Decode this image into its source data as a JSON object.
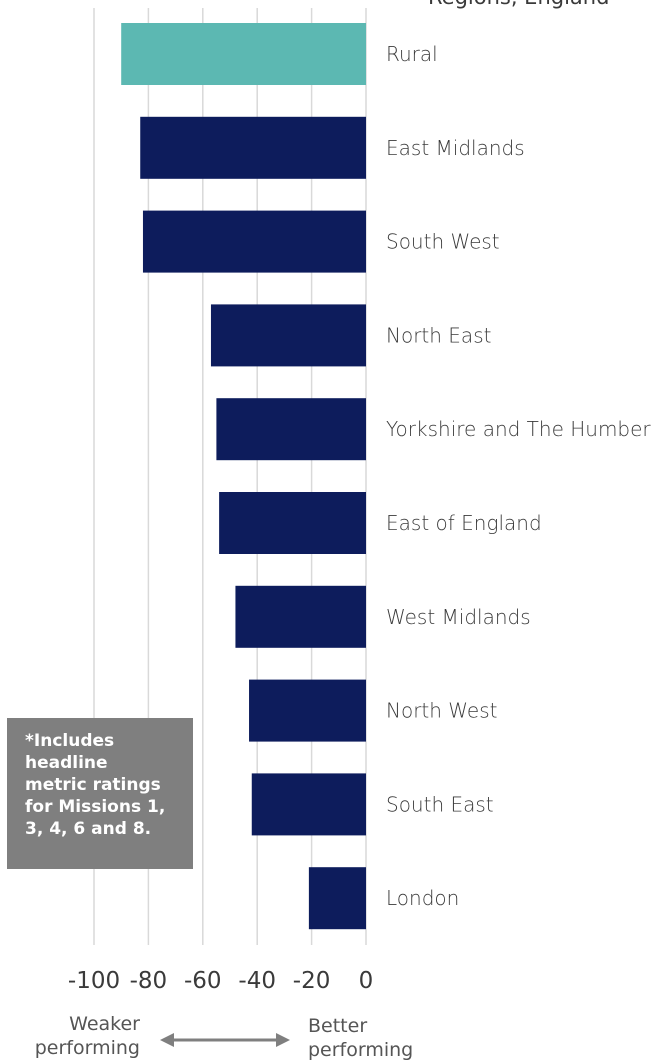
{
  "partial_title": "Regions, England",
  "note": "*Includes\nheadline\nmetric ratings\nfor Missions 1,\n3, 4, 6 and 8.",
  "perf": {
    "weaker_line1": "Weaker",
    "weaker_line2": "performing",
    "better_line1": "Better",
    "better_line2": "performing"
  },
  "colors": {
    "highlight": "#5cb8b2",
    "primary": "#0d1c5c",
    "grid": "#d9d9d9",
    "arrow": "#7f7f7f"
  },
  "chart_data": {
    "type": "bar",
    "orientation": "horizontal",
    "categories": [
      "Rural",
      "East Midlands",
      "South West",
      "North East",
      "Yorkshire and The Humber",
      "East of England",
      "West Midlands",
      "North West",
      "South East",
      "London"
    ],
    "values": [
      -90,
      -83,
      -82,
      -57,
      -55,
      -54,
      -48,
      -43,
      -42,
      -21
    ],
    "highlight_category": "Rural",
    "xlim": [
      -100,
      0
    ],
    "xticks": [
      -100,
      -80,
      -60,
      -40,
      -20,
      0
    ],
    "xtick_labels": [
      "-100",
      "-80",
      "-60",
      "-40",
      "-20",
      "0"
    ],
    "grid": true,
    "title": "Regions, England"
  }
}
